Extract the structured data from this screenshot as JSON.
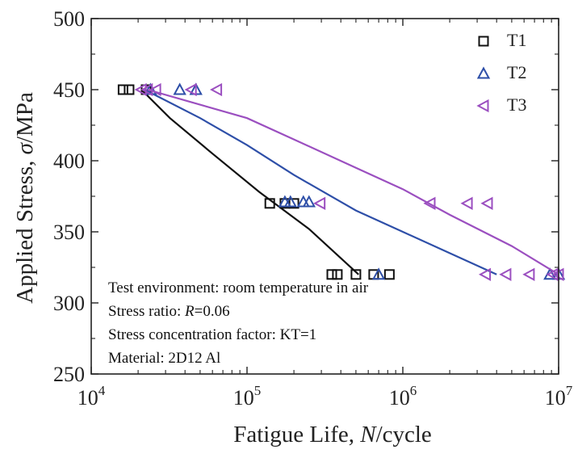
{
  "chart_data": {
    "type": "scatter",
    "title": "",
    "xlabel": {
      "prefix": "Fatigue Life, ",
      "var": "N",
      "suffix": "/cycle"
    },
    "ylabel": {
      "prefix": "Applied Stress, ",
      "var": "σ",
      "suffix": "/MPa"
    },
    "x_scale": "log",
    "xlim": [
      10000,
      10000000
    ],
    "ylim": [
      250,
      500
    ],
    "x_ticks": [
      {
        "value": 10000,
        "base": "10",
        "exp": "4"
      },
      {
        "value": 100000,
        "base": "10",
        "exp": "5"
      },
      {
        "value": 1000000,
        "base": "10",
        "exp": "6"
      },
      {
        "value": 10000000,
        "base": "10",
        "exp": "7"
      }
    ],
    "y_ticks": [
      250,
      300,
      350,
      400,
      450,
      500
    ],
    "legend_position": "top-right",
    "grid": false,
    "series": [
      {
        "name": "T1",
        "marker": "square",
        "color": "#111111",
        "points": [
          {
            "x": 16000,
            "y": 450
          },
          {
            "x": 17500,
            "y": 450
          },
          {
            "x": 22500,
            "y": 450
          },
          {
            "x": 140000,
            "y": 370
          },
          {
            "x": 175000,
            "y": 370
          },
          {
            "x": 200000,
            "y": 370
          },
          {
            "x": 350000,
            "y": 320
          },
          {
            "x": 380000,
            "y": 320
          },
          {
            "x": 500000,
            "y": 320
          },
          {
            "x": 650000,
            "y": 320
          },
          {
            "x": 820000,
            "y": 320
          }
        ],
        "fit": [
          {
            "x": 21000,
            "y": 450
          },
          {
            "x": 32000,
            "y": 430
          },
          {
            "x": 60000,
            "y": 405
          },
          {
            "x": 120000,
            "y": 378
          },
          {
            "x": 250000,
            "y": 352
          },
          {
            "x": 520000,
            "y": 320
          }
        ]
      },
      {
        "name": "T2",
        "marker": "triangle-up",
        "color": "#2e4fa8",
        "points": [
          {
            "x": 24000,
            "y": 450
          },
          {
            "x": 37000,
            "y": 450
          },
          {
            "x": 47000,
            "y": 450
          },
          {
            "x": 175000,
            "y": 371
          },
          {
            "x": 190000,
            "y": 371
          },
          {
            "x": 230000,
            "y": 371
          },
          {
            "x": 250000,
            "y": 371
          },
          {
            "x": 700000,
            "y": 320
          },
          {
            "x": 8800000,
            "y": 320
          },
          {
            "x": 10000000,
            "y": 320
          }
        ],
        "fit": [
          {
            "x": 22000,
            "y": 450
          },
          {
            "x": 50000,
            "y": 430
          },
          {
            "x": 100000,
            "y": 411
          },
          {
            "x": 200000,
            "y": 390
          },
          {
            "x": 500000,
            "y": 365
          },
          {
            "x": 1000000,
            "y": 350
          },
          {
            "x": 2000000,
            "y": 335
          },
          {
            "x": 4000000,
            "y": 320
          }
        ]
      },
      {
        "name": "T3",
        "marker": "triangle-left",
        "color": "#9b4fc0",
        "points": [
          {
            "x": 21000,
            "y": 450
          },
          {
            "x": 23000,
            "y": 450
          },
          {
            "x": 26000,
            "y": 450
          },
          {
            "x": 44000,
            "y": 450
          },
          {
            "x": 64000,
            "y": 450
          },
          {
            "x": 295000,
            "y": 370
          },
          {
            "x": 1500000,
            "y": 370
          },
          {
            "x": 2600000,
            "y": 370
          },
          {
            "x": 3500000,
            "y": 370
          },
          {
            "x": 3400000,
            "y": 320
          },
          {
            "x": 4600000,
            "y": 320
          },
          {
            "x": 6500000,
            "y": 320
          },
          {
            "x": 9200000,
            "y": 320
          },
          {
            "x": 10000000,
            "y": 320
          }
        ],
        "fit": [
          {
            "x": 23000,
            "y": 450
          },
          {
            "x": 100000,
            "y": 430
          },
          {
            "x": 200000,
            "y": 415
          },
          {
            "x": 500000,
            "y": 395
          },
          {
            "x": 1000000,
            "y": 380
          },
          {
            "x": 2000000,
            "y": 362
          },
          {
            "x": 5000000,
            "y": 340
          },
          {
            "x": 10000000,
            "y": 320
          }
        ]
      }
    ],
    "annotations": [
      {
        "text": "Test environment: room temperature in air"
      },
      {
        "prefix": "Stress ratio: ",
        "var": "R",
        "suffix": "=0.06"
      },
      {
        "text": "Stress concentration factor: KT=1"
      },
      {
        "text": "Material: 2D12 Al"
      }
    ]
  }
}
